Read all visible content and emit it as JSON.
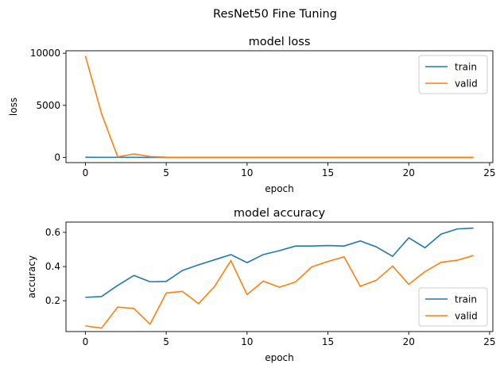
{
  "figure_title": "ResNet50 Fine Tuning",
  "colors": {
    "train": "#1f77b4",
    "valid": "#ff7f0e",
    "axis": "#000000",
    "background": "#ffffff"
  },
  "chart_data": [
    {
      "type": "line",
      "title": "model loss",
      "xlabel": "epoch",
      "ylabel": "loss",
      "xlim": [
        -1.2,
        25.2
      ],
      "ylim": [
        -500,
        10240
      ],
      "xticks": [
        0,
        5,
        10,
        15,
        20,
        25
      ],
      "yticks": [
        0,
        5000,
        10000
      ],
      "grid": false,
      "legend_position": "top-right",
      "x": [
        0,
        1,
        2,
        3,
        4,
        5,
        6,
        7,
        8,
        9,
        10,
        11,
        12,
        13,
        14,
        15,
        16,
        17,
        18,
        19,
        20,
        21,
        22,
        23,
        24
      ],
      "series": [
        {
          "name": "train",
          "color": "#1f77b4",
          "values": [
            8,
            5,
            4,
            4,
            3,
            3,
            3,
            3,
            3,
            3,
            3,
            3,
            3,
            3,
            3,
            3,
            3,
            3,
            3,
            3,
            3,
            3,
            3,
            3,
            3
          ]
        },
        {
          "name": "valid",
          "color": "#ff7f0e",
          "values": [
            9750,
            4200,
            50,
            330,
            80,
            20,
            15,
            12,
            12,
            10,
            14,
            10,
            9,
            9,
            8,
            8,
            8,
            9,
            8,
            8,
            8,
            7,
            7,
            7,
            7
          ]
        }
      ]
    },
    {
      "type": "line",
      "title": "model accuracy",
      "xlabel": "epoch",
      "ylabel": "accuracy",
      "xlim": [
        -1.2,
        25.2
      ],
      "ylim": [
        0.02,
        0.66
      ],
      "xticks": [
        0,
        5,
        10,
        15,
        20,
        25
      ],
      "yticks": [
        0.2,
        0.4,
        0.6
      ],
      "grid": false,
      "legend_position": "bottom-right",
      "x": [
        0,
        1,
        2,
        3,
        4,
        5,
        6,
        7,
        8,
        9,
        10,
        11,
        12,
        13,
        14,
        15,
        16,
        17,
        18,
        19,
        20,
        21,
        22,
        23,
        24
      ],
      "series": [
        {
          "name": "train",
          "color": "#1f77b4",
          "values": [
            0.22,
            0.225,
            0.29,
            0.348,
            0.311,
            0.313,
            0.377,
            0.41,
            0.44,
            0.47,
            0.423,
            0.47,
            0.493,
            0.52,
            0.52,
            0.523,
            0.52,
            0.55,
            0.515,
            0.46,
            0.568,
            0.51,
            0.59,
            0.62,
            0.625
          ]
        },
        {
          "name": "valid",
          "color": "#ff7f0e",
          "values": [
            0.053,
            0.04,
            0.163,
            0.155,
            0.063,
            0.245,
            0.255,
            0.183,
            0.285,
            0.435,
            0.236,
            0.315,
            0.279,
            0.31,
            0.398,
            0.43,
            0.457,
            0.285,
            0.32,
            0.403,
            0.296,
            0.37,
            0.425,
            0.437,
            0.465
          ]
        }
      ]
    }
  ]
}
